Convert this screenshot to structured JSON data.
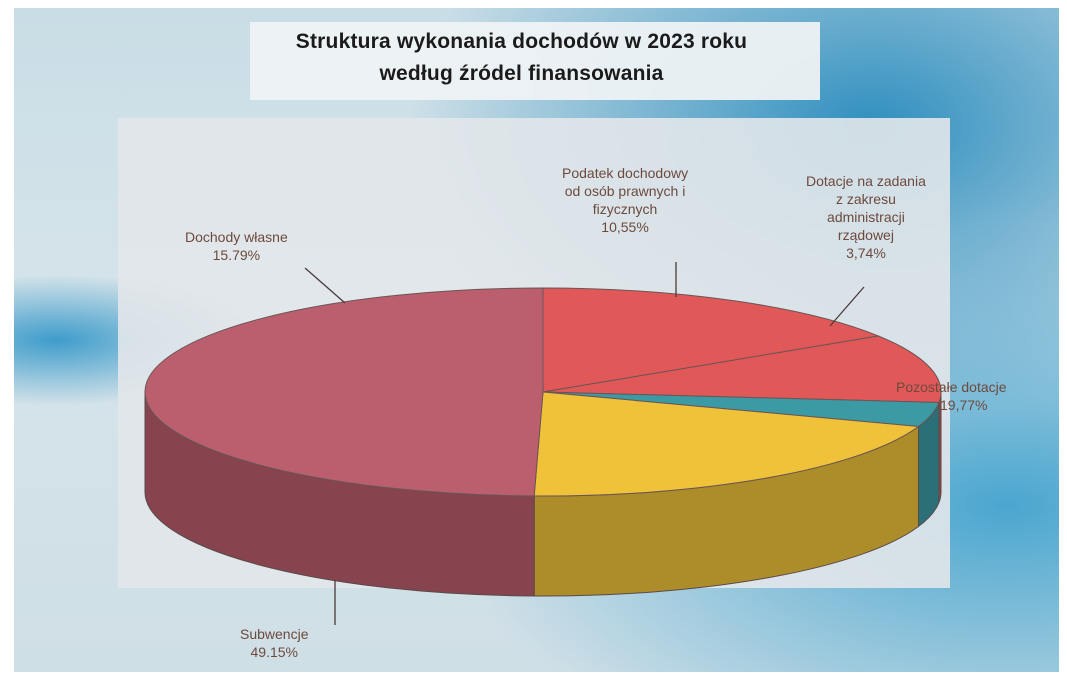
{
  "chart_data": {
    "type": "pie",
    "style": "3d",
    "title_lines": [
      "Struktura  wykonania dochodów w  2023 roku",
      "według źródel finansowania"
    ],
    "slices": [
      {
        "name": "Dochody własne",
        "value": 15.79,
        "label": "15.79%",
        "color": "#e05858"
      },
      {
        "name": "Podatek dochodowy od osób prawnych i fizycznych",
        "value": 10.55,
        "label": "10,55%",
        "color": "#e05858"
      },
      {
        "name": "Dotacje na zadania z zakresu administracji rządowej",
        "value": 3.74,
        "label": "3,74%",
        "color": "#3c9aa5"
      },
      {
        "name": "Pozostałe dotacje",
        "value": 19.77,
        "label": "19,77%",
        "color": "#f0c23a"
      },
      {
        "name": "Subwencje",
        "value": 49.15,
        "label": "49.15%",
        "color": "#bb5f6e"
      }
    ],
    "labels": {
      "dochody": [
        "Dochody własne",
        "15.79%"
      ],
      "podatek": [
        "Podatek dochodowy",
        "od osób prawnych i",
        "fizycznych",
        "10,55%"
      ],
      "dotacje_adm": [
        "Dotacje na zadania",
        "z zakresu",
        "administracji",
        "rządowej",
        "3,74%"
      ],
      "pozostale": [
        "Pozostałe dotacje",
        "19,77%"
      ],
      "subwencje": [
        "Subwencje",
        "49.15%"
      ]
    }
  }
}
